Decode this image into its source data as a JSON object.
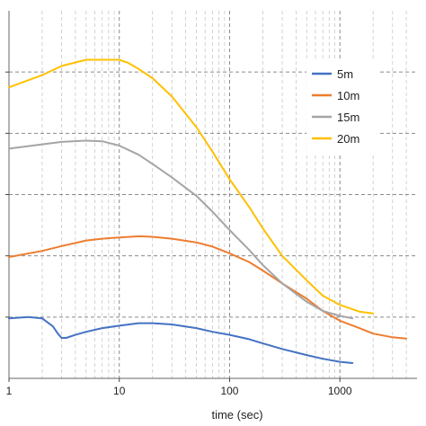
{
  "chart_data": {
    "type": "line",
    "title": "",
    "xlabel": "time (sec)",
    "ylabel": "",
    "x_scale": "log",
    "xlim": [
      1,
      5000
    ],
    "ylim": [
      0,
      6
    ],
    "grid": {
      "major_y": true,
      "major_x": true,
      "minor_x": true,
      "style": "dashed"
    },
    "x_tick_labels": [
      "1",
      "10",
      "100",
      "1000"
    ],
    "x_ticks": [
      1,
      10,
      100,
      1000
    ],
    "y_ticks": [
      1,
      2,
      3,
      4,
      5
    ],
    "legend": {
      "position": "right",
      "entries": [
        "5m",
        "10m",
        "15m",
        "20m"
      ]
    },
    "series": [
      {
        "name": "5m",
        "color": "#4472C4",
        "x": [
          1,
          1.5,
          2,
          2.5,
          2.8,
          3.0,
          3.3,
          4,
          5,
          7,
          10,
          15,
          20,
          30,
          50,
          70,
          100,
          150,
          200,
          300,
          500,
          700,
          1000,
          1300
        ],
        "y": [
          0.98,
          1.0,
          0.98,
          0.85,
          0.72,
          0.66,
          0.66,
          0.71,
          0.76,
          0.82,
          0.86,
          0.9,
          0.9,
          0.88,
          0.82,
          0.76,
          0.71,
          0.64,
          0.57,
          0.48,
          0.38,
          0.32,
          0.27,
          0.25
        ]
      },
      {
        "name": "10m",
        "color": "#ED7D31",
        "x": [
          1,
          2,
          3,
          5,
          7,
          10,
          15,
          20,
          30,
          50,
          70,
          100,
          150,
          200,
          300,
          500,
          700,
          1000,
          1500,
          2000,
          3000,
          4000
        ],
        "y": [
          1.98,
          2.08,
          2.16,
          2.25,
          2.28,
          2.3,
          2.32,
          2.31,
          2.28,
          2.22,
          2.15,
          2.04,
          1.9,
          1.76,
          1.55,
          1.3,
          1.1,
          0.94,
          0.82,
          0.73,
          0.67,
          0.65
        ]
      },
      {
        "name": "15m",
        "color": "#A5A5A5",
        "x": [
          1,
          2,
          3,
          5,
          7,
          10,
          15,
          20,
          30,
          50,
          70,
          100,
          150,
          200,
          300,
          500,
          700,
          1000,
          1300
        ],
        "y": [
          3.75,
          3.82,
          3.86,
          3.88,
          3.87,
          3.8,
          3.65,
          3.5,
          3.28,
          2.98,
          2.72,
          2.42,
          2.1,
          1.85,
          1.55,
          1.25,
          1.1,
          1.02,
          0.98
        ]
      },
      {
        "name": "20m",
        "color": "#FFC000",
        "x": [
          1,
          2,
          3,
          5,
          7,
          10,
          12,
          15,
          20,
          30,
          50,
          70,
          100,
          150,
          200,
          300,
          500,
          700,
          1000,
          1500,
          2000
        ],
        "y": [
          4.75,
          4.95,
          5.1,
          5.2,
          5.2,
          5.2,
          5.15,
          5.05,
          4.9,
          4.6,
          4.1,
          3.7,
          3.25,
          2.8,
          2.45,
          2.0,
          1.6,
          1.35,
          1.2,
          1.09,
          1.06
        ]
      }
    ]
  }
}
